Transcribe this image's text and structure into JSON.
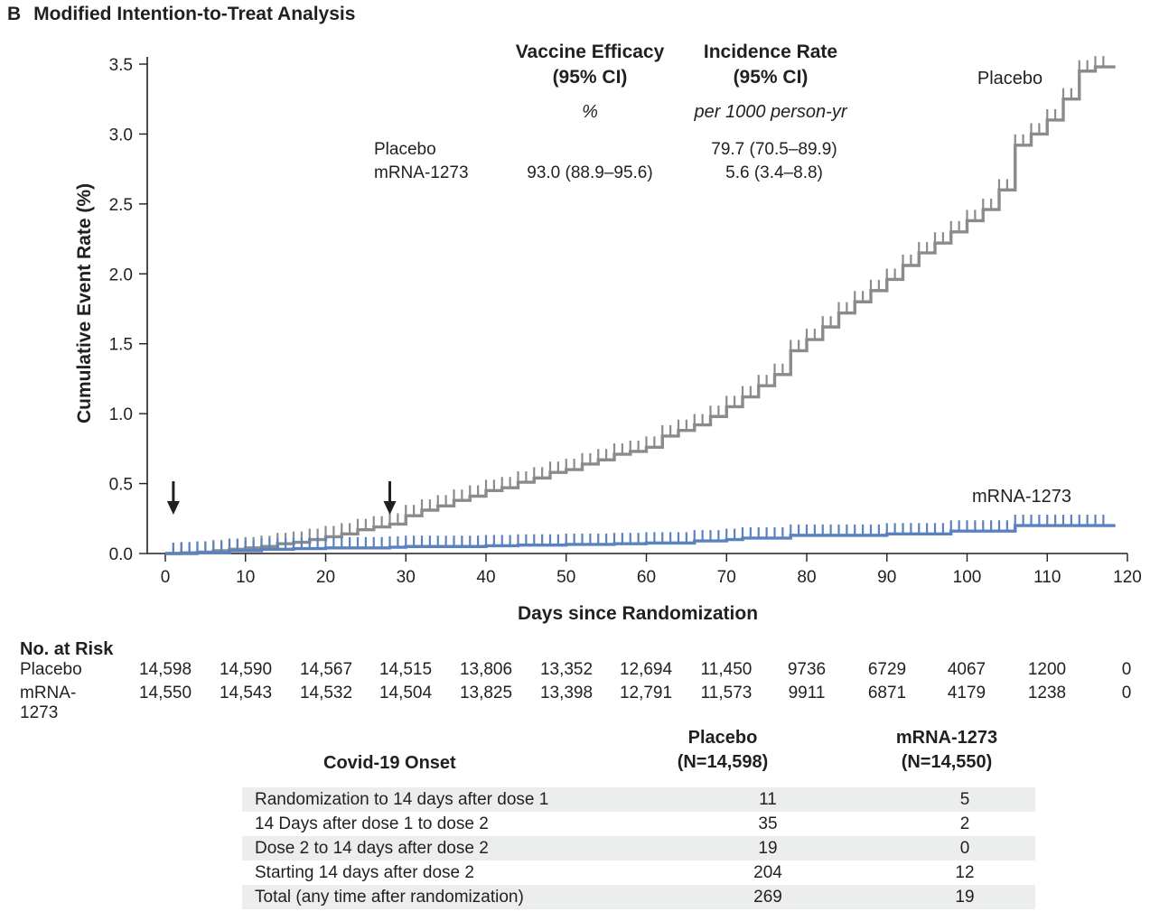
{
  "panel": {
    "letter": "B",
    "title": "Modified Intention-to-Treat Analysis"
  },
  "chart_data": {
    "type": "line",
    "xlabel": "Days since Randomization",
    "ylabel": "Cumulative Event Rate (%)",
    "xlim": [
      0,
      120
    ],
    "ylim": [
      0,
      3.5
    ],
    "xticks": [
      0,
      10,
      20,
      30,
      40,
      50,
      60,
      70,
      80,
      90,
      100,
      110,
      120
    ],
    "yticks": [
      "0.0",
      "0.5",
      "1.0",
      "1.5",
      "2.0",
      "2.5",
      "3.0",
      "3.5"
    ],
    "grid": false,
    "arrows_at_day": [
      1,
      28
    ],
    "series": [
      {
        "name": "Placebo",
        "color": "#8a8b8d",
        "x": [
          0,
          2,
          4,
          6,
          8,
          10,
          12,
          14,
          16,
          18,
          20,
          22,
          24,
          26,
          28,
          30,
          32,
          34,
          36,
          38,
          40,
          42,
          44,
          46,
          48,
          50,
          52,
          54,
          56,
          58,
          60,
          62,
          64,
          66,
          68,
          70,
          72,
          74,
          76,
          78,
          80,
          82,
          84,
          86,
          88,
          90,
          92,
          94,
          96,
          98,
          100,
          102,
          104,
          106,
          108,
          110,
          112,
          114,
          116,
          118
        ],
        "values": [
          0,
          0.005,
          0.01,
          0.02,
          0.03,
          0.04,
          0.05,
          0.07,
          0.08,
          0.1,
          0.12,
          0.14,
          0.17,
          0.19,
          0.21,
          0.27,
          0.31,
          0.34,
          0.38,
          0.41,
          0.45,
          0.47,
          0.51,
          0.54,
          0.58,
          0.6,
          0.64,
          0.67,
          0.71,
          0.73,
          0.76,
          0.84,
          0.88,
          0.92,
          0.98,
          1.05,
          1.12,
          1.2,
          1.28,
          1.45,
          1.53,
          1.62,
          1.72,
          1.8,
          1.88,
          1.96,
          2.06,
          2.15,
          2.22,
          2.3,
          2.38,
          2.46,
          2.6,
          2.92,
          3.0,
          3.1,
          3.25,
          3.45,
          3.48,
          3.48
        ]
      },
      {
        "name": "mRNA-1273",
        "color": "#5b82c0",
        "x": [
          0,
          4,
          8,
          12,
          16,
          20,
          24,
          28,
          30,
          34,
          40,
          44,
          50,
          56,
          60,
          66,
          70,
          72,
          78,
          84,
          90,
          98,
          106,
          112,
          118
        ],
        "values": [
          0,
          0.005,
          0.02,
          0.03,
          0.035,
          0.04,
          0.04,
          0.045,
          0.05,
          0.05,
          0.055,
          0.06,
          0.065,
          0.07,
          0.075,
          0.09,
          0.1,
          0.11,
          0.13,
          0.13,
          0.14,
          0.16,
          0.2,
          0.2,
          0.2
        ]
      }
    ],
    "series_labels": [
      "Placebo",
      "mRNA-1273"
    ],
    "inset_table": {
      "col_headers": [
        "Vaccine Efficacy\n(95% CI)",
        "Incidence Rate\n(95% CI)"
      ],
      "col_units": [
        "%",
        "per 1000 person-yr"
      ],
      "rows": [
        {
          "group": "Placebo",
          "efficacy": "",
          "incidence": "79.7 (70.5–89.9)"
        },
        {
          "group": "mRNA-1273",
          "efficacy": "93.0 (88.9–95.6)",
          "incidence": "5.6 (3.4–8.8)"
        }
      ]
    }
  },
  "at_risk": {
    "title": "No. at Risk",
    "rows": [
      {
        "label": "Placebo",
        "values": [
          "14,598",
          "14,590",
          "14,567",
          "14,515",
          "13,806",
          "13,352",
          "12,694",
          "11,450",
          "9736",
          "6729",
          "4067",
          "1200",
          "0"
        ]
      },
      {
        "label": "mRNA-1273",
        "values": [
          "14,550",
          "14,543",
          "14,532",
          "14,504",
          "13,825",
          "13,398",
          "12,791",
          "11,573",
          "9911",
          "6871",
          "4179",
          "1238",
          "0"
        ]
      }
    ]
  },
  "onset_table": {
    "header": [
      "Covid-19 Onset",
      "Placebo\n(N=14,598)",
      "mRNA-1273\n(N=14,550)"
    ],
    "rows": [
      {
        "label": "Randomization to 14 days after dose 1",
        "placebo": "11",
        "mrna": "5"
      },
      {
        "label": "14 Days after dose 1 to dose 2",
        "placebo": "35",
        "mrna": "2"
      },
      {
        "label": "Dose 2 to 14 days after dose 2",
        "placebo": "19",
        "mrna": "0"
      },
      {
        "label": "Starting 14 days after dose 2",
        "placebo": "204",
        "mrna": "12"
      },
      {
        "label": "Total (any time after randomization)",
        "placebo": "269",
        "mrna": "19"
      }
    ]
  }
}
